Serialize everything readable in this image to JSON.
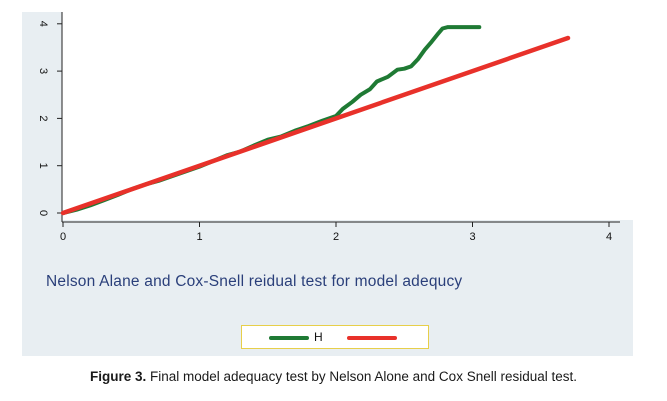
{
  "chart_data": {
    "type": "line",
    "title": "",
    "xlabel": "Nelson Alane and Cox-Snell reidual test for model adequcy",
    "ylabel": "",
    "xlim": [
      0,
      4
    ],
    "ylim": [
      0,
      4
    ],
    "x_ticks": [
      "0",
      "1",
      "2",
      "3",
      "4"
    ],
    "y_ticks": [
      "0",
      "1",
      "2",
      "3",
      "4"
    ],
    "grid": false,
    "legend_position": "bottom-center",
    "series": [
      {
        "name": "H",
        "color": "#1f7a34",
        "x": [
          0,
          0.1,
          0.2,
          0.3,
          0.4,
          0.5,
          0.6,
          0.7,
          0.8,
          0.9,
          1.0,
          1.1,
          1.2,
          1.3,
          1.4,
          1.5,
          1.6,
          1.7,
          1.8,
          1.9,
          2.0,
          2.05,
          2.12,
          2.18,
          2.25,
          2.3,
          2.38,
          2.45,
          2.5,
          2.55,
          2.6,
          2.65,
          2.7,
          2.75,
          2.78,
          2.82,
          2.88,
          2.95,
          3.05
        ],
        "y": [
          0,
          0.07,
          0.16,
          0.27,
          0.38,
          0.5,
          0.6,
          0.68,
          0.78,
          0.88,
          0.98,
          1.1,
          1.22,
          1.3,
          1.43,
          1.55,
          1.62,
          1.74,
          1.84,
          1.95,
          2.05,
          2.2,
          2.35,
          2.5,
          2.62,
          2.78,
          2.88,
          3.03,
          3.05,
          3.1,
          3.25,
          3.45,
          3.62,
          3.8,
          3.9,
          3.93,
          3.93,
          3.93,
          3.93
        ]
      },
      {
        "name": "",
        "color": "#e8312a",
        "x": [
          0,
          3.7
        ],
        "y": [
          0,
          3.7
        ]
      }
    ]
  },
  "legend": {
    "label": "H",
    "colors": [
      "#1f7a34",
      "#e8312a"
    ]
  },
  "caption": {
    "label": "Figure 3.",
    "text": " Final model adequacy test by Nelson Alone and Cox Snell residual test."
  }
}
